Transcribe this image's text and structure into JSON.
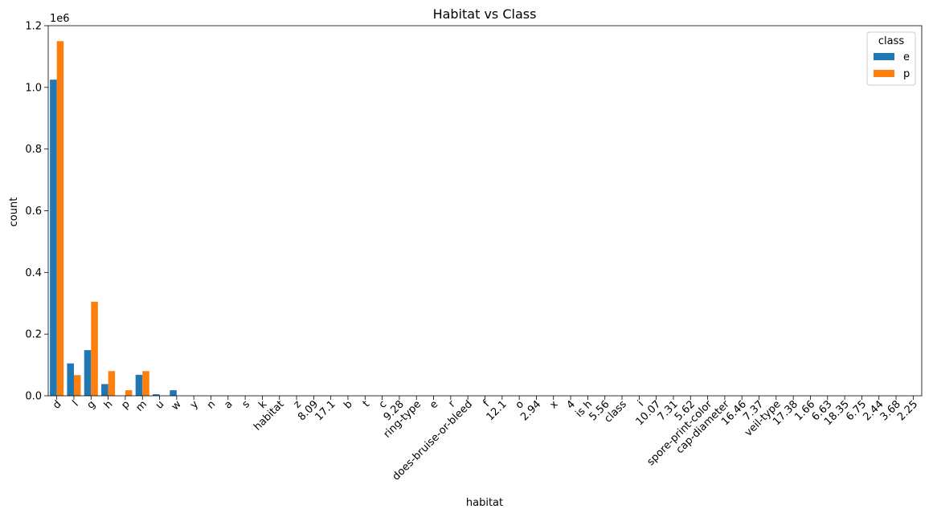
{
  "chart_data": {
    "type": "bar",
    "title": "Habitat vs Class",
    "xlabel": "habitat",
    "ylabel": "count",
    "y_scale_label": "1e6",
    "ylim": [
      0,
      1.2
    ],
    "yticks": [
      "0.0",
      "0.2",
      "0.4",
      "0.6",
      "0.8",
      "1.0",
      "1.2"
    ],
    "categories": [
      "d",
      "l",
      "g",
      "h",
      "p",
      "m",
      "u",
      "w",
      "y",
      "n",
      "a",
      "s",
      "k",
      "habitat",
      "z",
      "8.09",
      "17.1",
      "b",
      "t",
      "c",
      "9.28",
      "ring-type",
      "e",
      "r",
      "does-bruise-or-bleed",
      "f",
      "12.1",
      "o",
      "2.94",
      "x",
      "4",
      "is h",
      "5.56",
      "class",
      "i",
      "10.07",
      "7.31",
      "5.62",
      "spore-print-color",
      "cap-diameter",
      "16.46",
      "7.37",
      "veil-type",
      "17.38",
      "1.66",
      "6.63",
      "18.35",
      "6.75",
      "2.44",
      "3.68",
      "2.25"
    ],
    "series": [
      {
        "name": "e",
        "color": "#1f77b4",
        "values": [
          1.025,
          0.105,
          0.148,
          0.038,
          0.0,
          0.068,
          0.005,
          0.018,
          0,
          0,
          0,
          0,
          0,
          0,
          0,
          0,
          0,
          0,
          0,
          0,
          0,
          0,
          0,
          0,
          0,
          0,
          0,
          0,
          0,
          0,
          0,
          0,
          0,
          0,
          0,
          0,
          0,
          0,
          0,
          0,
          0,
          0,
          0,
          0,
          0,
          0,
          0,
          0,
          0,
          0,
          0
        ]
      },
      {
        "name": "p",
        "color": "#ff7f0e",
        "values": [
          1.15,
          0.067,
          0.305,
          0.08,
          0.018,
          0.08,
          0.0,
          0.0,
          0,
          0,
          0,
          0,
          0,
          0,
          0,
          0,
          0,
          0,
          0,
          0,
          0,
          0,
          0,
          0,
          0,
          0,
          0,
          0,
          0,
          0,
          0,
          0,
          0,
          0,
          0,
          0,
          0,
          0,
          0,
          0,
          0,
          0,
          0,
          0,
          0,
          0,
          0,
          0,
          0,
          0,
          0
        ]
      }
    ],
    "legend": {
      "title": "class",
      "placement": "top-right"
    },
    "grid": false
  }
}
